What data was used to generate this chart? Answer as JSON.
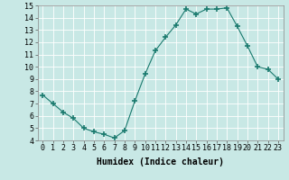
{
  "x": [
    0,
    1,
    2,
    3,
    4,
    5,
    6,
    7,
    8,
    9,
    10,
    11,
    12,
    13,
    14,
    15,
    16,
    17,
    18,
    19,
    20,
    21,
    22,
    23
  ],
  "y": [
    7.7,
    7.0,
    6.3,
    5.8,
    5.0,
    4.7,
    4.5,
    4.2,
    4.8,
    7.2,
    9.4,
    11.3,
    12.4,
    13.4,
    14.7,
    14.3,
    14.7,
    14.7,
    14.8,
    13.3,
    11.7,
    10.0,
    9.8,
    9.0
  ],
  "line_color": "#1a7a6e",
  "marker": "+",
  "marker_size": 4,
  "bg_color": "#c8e8e5",
  "grid_color": "#ffffff",
  "xlabel": "Humidex (Indice chaleur)",
  "xlim": [
    -0.5,
    23.5
  ],
  "ylim": [
    4,
    15
  ],
  "yticks": [
    4,
    5,
    6,
    7,
    8,
    9,
    10,
    11,
    12,
    13,
    14,
    15
  ],
  "xticks": [
    0,
    1,
    2,
    3,
    4,
    5,
    6,
    7,
    8,
    9,
    10,
    11,
    12,
    13,
    14,
    15,
    16,
    17,
    18,
    19,
    20,
    21,
    22,
    23
  ],
  "tick_fontsize": 6,
  "label_fontsize": 7
}
